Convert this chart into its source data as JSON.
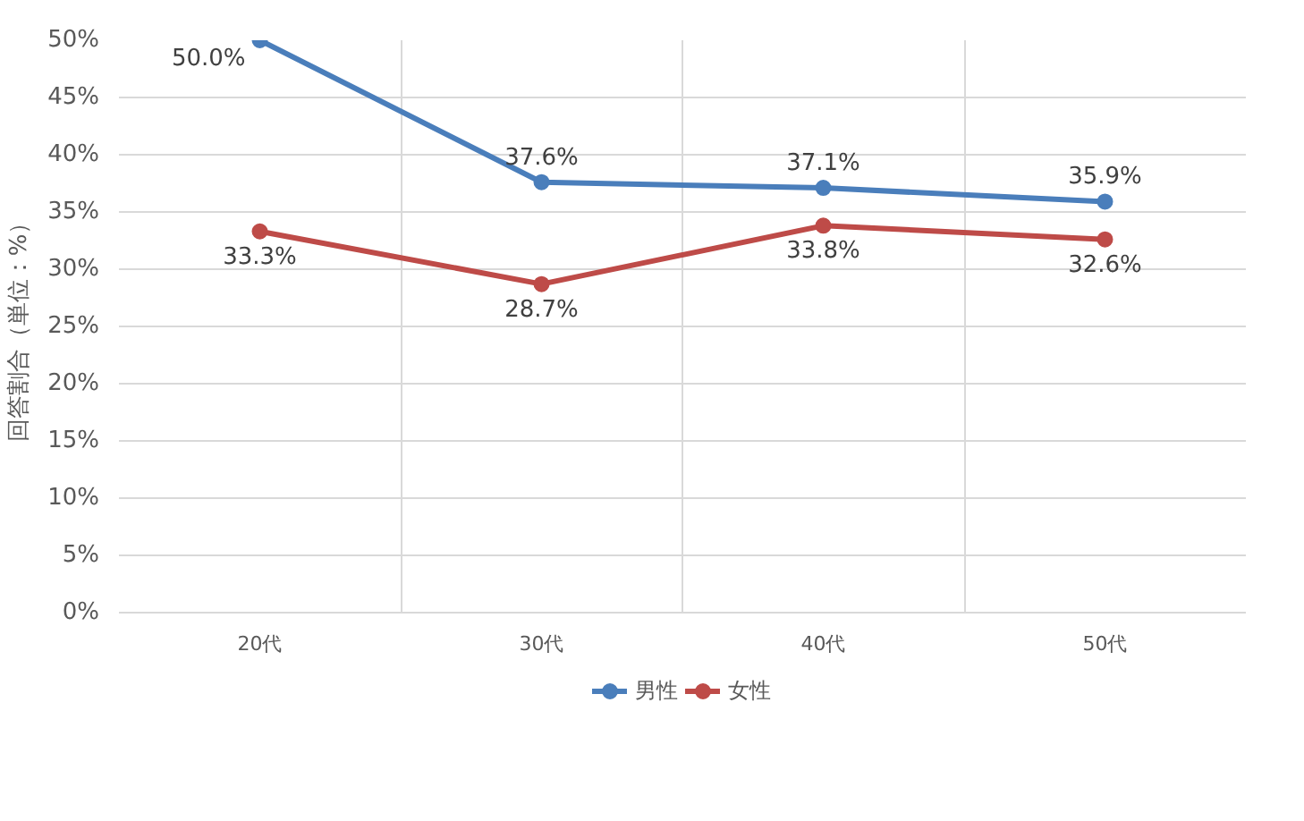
{
  "chart_data": {
    "type": "line",
    "ylabel": "回答割合（単位：%）",
    "categories": [
      "20代",
      "30代",
      "40代",
      "50代"
    ],
    "series": [
      {
        "name": "男性",
        "color": "#4a7ebb",
        "values": [
          50.0,
          37.6,
          37.1,
          35.9
        ],
        "value_labels": [
          "50.0%",
          "37.6%",
          "37.1%",
          "35.9%"
        ]
      },
      {
        "name": "女性",
        "color": "#be4b48",
        "values": [
          33.3,
          28.7,
          33.8,
          32.6
        ],
        "value_labels": [
          "33.3%",
          "28.7%",
          "33.8%",
          "32.6%"
        ]
      }
    ],
    "ylim": [
      0,
      50
    ],
    "yticks": [
      {
        "value": 0,
        "label": "0%"
      },
      {
        "value": 5,
        "label": "5%"
      },
      {
        "value": 10,
        "label": "10%"
      },
      {
        "value": 15,
        "label": "15%"
      },
      {
        "value": 20,
        "label": "20%"
      },
      {
        "value": 25,
        "label": "25%"
      },
      {
        "value": 30,
        "label": "30%"
      },
      {
        "value": 35,
        "label": "35%"
      },
      {
        "value": 40,
        "label": "40%"
      },
      {
        "value": 45,
        "label": "45%"
      },
      {
        "value": 50,
        "label": "50%"
      }
    ],
    "grid": true,
    "legend": "bottom",
    "marker": "circle",
    "line_style": "solid"
  }
}
